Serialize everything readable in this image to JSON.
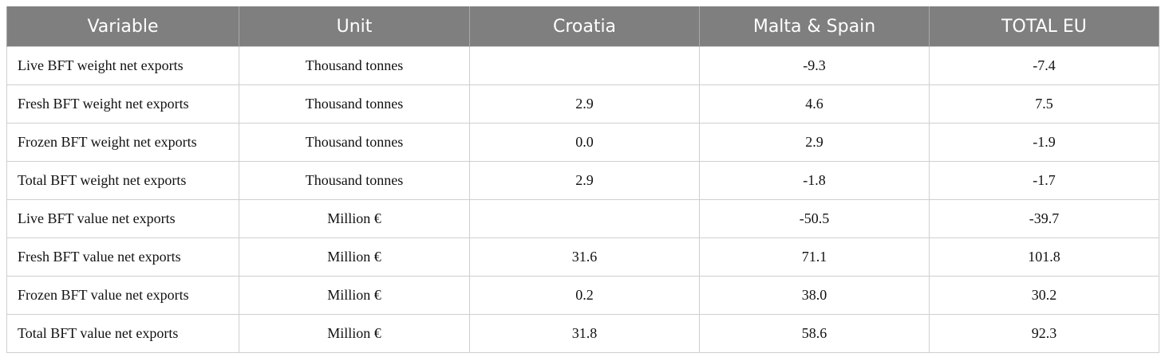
{
  "table": {
    "header": [
      "Variable",
      "Unit",
      "Croatia",
      "Malta & Spain",
      "TOTAL EU"
    ],
    "rows": [
      [
        "Live BFT weight net exports",
        "Thousand tonnes",
        null,
        "-9.3",
        "-7.4"
      ],
      [
        "Fresh BFT weight net exports",
        "Thousand tonnes",
        "2.9",
        "4.6",
        "7.5"
      ],
      [
        "Frozen BFT weight net exports",
        "Thousand tonnes",
        "0.0",
        "2.9",
        "-1.9"
      ],
      [
        "Total BFT weight net exports",
        "Thousand tonnes",
        "2.9",
        "-1.8",
        "-1.7"
      ],
      [
        "Live BFT value net exports",
        "Million €",
        null,
        "-50.5",
        "-39.7"
      ],
      [
        "Fresh BFT value net exports",
        "Million €",
        "31.6",
        "71.1",
        "101.8"
      ],
      [
        "Frozen BFT value net exports",
        "Million €",
        "0.2",
        "38.0",
        "30.2"
      ],
      [
        "Total BFT value net exports",
        "Million €",
        "31.8",
        "58.6",
        "92.3"
      ]
    ]
  }
}
